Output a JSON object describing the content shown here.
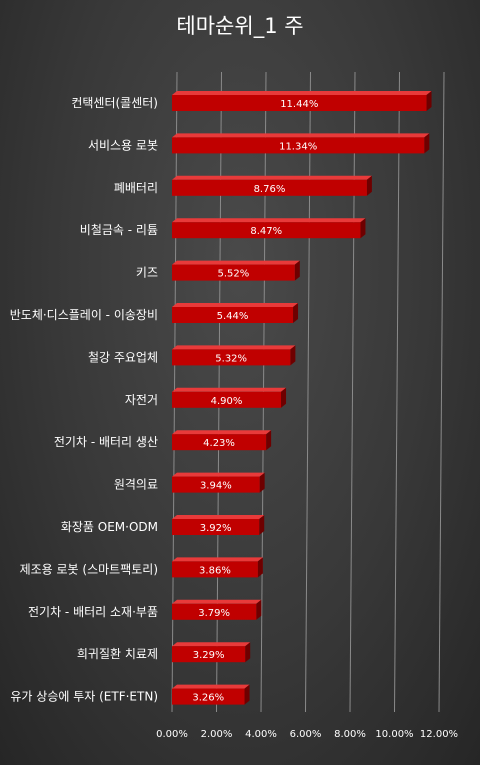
{
  "chart_data": {
    "type": "bar",
    "orientation": "horizontal",
    "title": "테마순위_1 주",
    "categories": [
      "컨택센터(콜센터)",
      "서비스용 로봇",
      "폐배터리",
      "비철금속 - 리튬",
      "키즈",
      "반도체·디스플레이 - 이송장비",
      "철강 주요업체",
      "자전거",
      "전기차 - 배터리 생산",
      "원격의료",
      "화장품 OEM·ODM",
      "제조용 로봇 (스마트팩토리)",
      "전기차 - 배터리 소재·부품",
      "희귀질환 치료제",
      "유가 상승에 투자 (ETF·ETN)"
    ],
    "values": [
      11.44,
      11.34,
      8.76,
      8.47,
      5.52,
      5.44,
      5.32,
      4.9,
      4.23,
      3.94,
      3.92,
      3.86,
      3.79,
      3.29,
      3.26
    ],
    "data_labels": [
      "11.44%",
      "11.34%",
      "8.76%",
      "8.47%",
      "5.52%",
      "5.44%",
      "5.32%",
      "4.90%",
      "4.23%",
      "3.94%",
      "3.92%",
      "3.86%",
      "3.79%",
      "3.29%",
      "3.26%"
    ],
    "xlim": [
      0,
      12
    ],
    "x_ticks": [
      "0.00%",
      "2.00%",
      "4.00%",
      "6.00%",
      "8.00%",
      "10.00%",
      "12.00%"
    ],
    "grid": true,
    "bar_color": "#c00000",
    "bar_side_color": "#6e0000",
    "bar_top_color": "#e83a3a",
    "text_color": "#ffffff",
    "grid_color": "#8a8a8a"
  }
}
